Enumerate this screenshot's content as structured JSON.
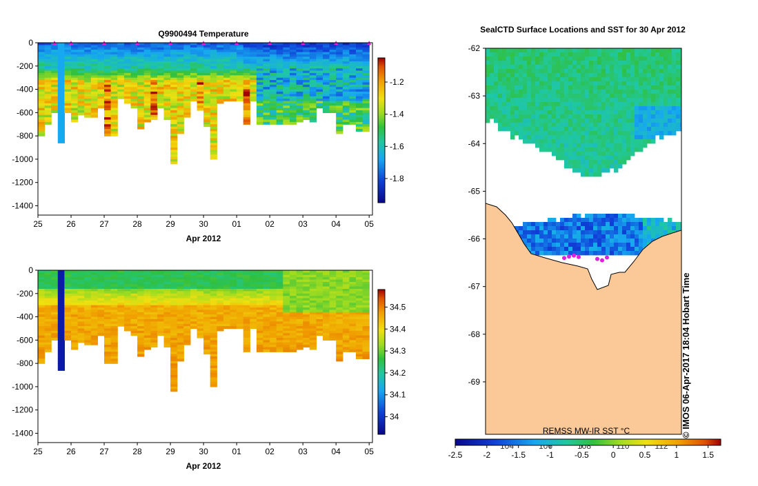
{
  "chart_data": [
    {
      "type": "heatmap",
      "title": "Q9900494  Temperature",
      "xlabel": "Apr 2012",
      "ylabel": "",
      "x_ticks": [
        "25",
        "26",
        "27",
        "28",
        "29",
        "30",
        "01",
        "02",
        "03",
        "04",
        "05"
      ],
      "y_ticks": [
        "0",
        "-200",
        "-400",
        "-600",
        "-800",
        "-1000",
        "-1200",
        "-1400"
      ],
      "ylim": [
        -1480,
        0
      ],
      "colorbar_ticks": [
        "-1.2",
        "-1.4",
        "-1.6",
        "-1.8"
      ],
      "colorbar_range": [
        -1.95,
        -1.05
      ],
      "profile_days": [
        25.0,
        25.2,
        25.4,
        25.6,
        25.8,
        26.0,
        26.2,
        26.4,
        26.6,
        26.8,
        27.0,
        27.2,
        27.4,
        27.6,
        27.8,
        28.0,
        28.2,
        28.4,
        28.6,
        28.8,
        29.0,
        29.2,
        29.4,
        29.6,
        29.8,
        30.0,
        30.2,
        30.4,
        30.6,
        30.8,
        31.0,
        31.2,
        31.4,
        31.6,
        31.8,
        32.0,
        32.2,
        32.4,
        32.6,
        32.8,
        33.0,
        33.2,
        33.4,
        33.6,
        33.8,
        34.0,
        34.2,
        34.4,
        34.6,
        34.8
      ],
      "profile_max_depth": [
        800,
        690,
        600,
        860,
        590,
        680,
        610,
        630,
        630,
        560,
        800,
        790,
        480,
        510,
        560,
        730,
        680,
        660,
        560,
        660,
        1040,
        770,
        630,
        500,
        580,
        710,
        990,
        520,
        500,
        500,
        500,
        700,
        500,
        690,
        690,
        700,
        700,
        700,
        700,
        670,
        660,
        670,
        560,
        590,
        600,
        780,
        700,
        690,
        750,
        750
      ],
      "surface_markers_days": [
        25.5,
        26,
        27,
        28,
        29,
        30,
        31,
        32,
        33,
        34,
        35
      ]
    },
    {
      "type": "heatmap",
      "title": "",
      "xlabel": "Apr 2012",
      "ylabel": "",
      "x_ticks": [
        "25",
        "26",
        "27",
        "28",
        "29",
        "30",
        "01",
        "02",
        "03",
        "04",
        "05"
      ],
      "y_ticks": [
        "0",
        "-200",
        "-400",
        "-600",
        "-800",
        "-1000",
        "-1200",
        "-1400"
      ],
      "ylim": [
        -1480,
        0
      ],
      "colorbar_ticks": [
        "34.5",
        "34.4",
        "34.3",
        "34.2",
        "34.1",
        "34"
      ],
      "colorbar_range": [
        33.92,
        34.58
      ],
      "profile_days": [
        25.0,
        25.2,
        25.4,
        25.6,
        25.8,
        26.0,
        26.2,
        26.4,
        26.6,
        26.8,
        27.0,
        27.2,
        27.4,
        27.6,
        27.8,
        28.0,
        28.2,
        28.4,
        28.6,
        28.8,
        29.0,
        29.2,
        29.4,
        29.6,
        29.8,
        30.0,
        30.2,
        30.4,
        30.6,
        30.8,
        31.0,
        31.2,
        31.4,
        31.6,
        31.8,
        32.0,
        32.2,
        32.4,
        32.6,
        32.8,
        33.0,
        33.2,
        33.4,
        33.6,
        33.8,
        34.0,
        34.2,
        34.4,
        34.6,
        34.8
      ],
      "profile_max_depth": [
        800,
        690,
        600,
        860,
        590,
        680,
        610,
        630,
        630,
        560,
        800,
        790,
        480,
        510,
        560,
        730,
        680,
        660,
        560,
        660,
        1040,
        770,
        630,
        500,
        580,
        710,
        990,
        520,
        500,
        500,
        500,
        700,
        500,
        690,
        690,
        700,
        700,
        700,
        700,
        670,
        660,
        670,
        560,
        590,
        600,
        780,
        700,
        690,
        750,
        750
      ]
    },
    {
      "type": "heatmap",
      "title": "SealCTD Surface Locations and SST for 30 Apr 2012",
      "y_ticks": [
        "-62",
        "-63",
        "-64",
        "-65",
        "-66",
        "-67",
        "-68",
        "-69"
      ],
      "ylim": [
        -70.1,
        -62.0
      ],
      "x_tick_labels_partial": [
        "104",
        "106",
        "108",
        "110",
        "112"
      ],
      "colorbar_ticks": [
        "-2.5",
        "-2",
        "-1.5",
        "-1",
        "-0.5",
        "0",
        "0.5",
        "1",
        "1.5"
      ],
      "colorbar_range": [
        -2.5,
        1.7
      ],
      "colorbar_label": "REMSS MW-IR SST °C",
      "float_positions_lat": [
        -66.4,
        -66.37,
        -66.35,
        -66.38,
        -66.42,
        -66.45,
        -66.39
      ]
    }
  ],
  "stamp_text": "©  IMOS 06-Apr-2017 18:04 Hobart Time"
}
